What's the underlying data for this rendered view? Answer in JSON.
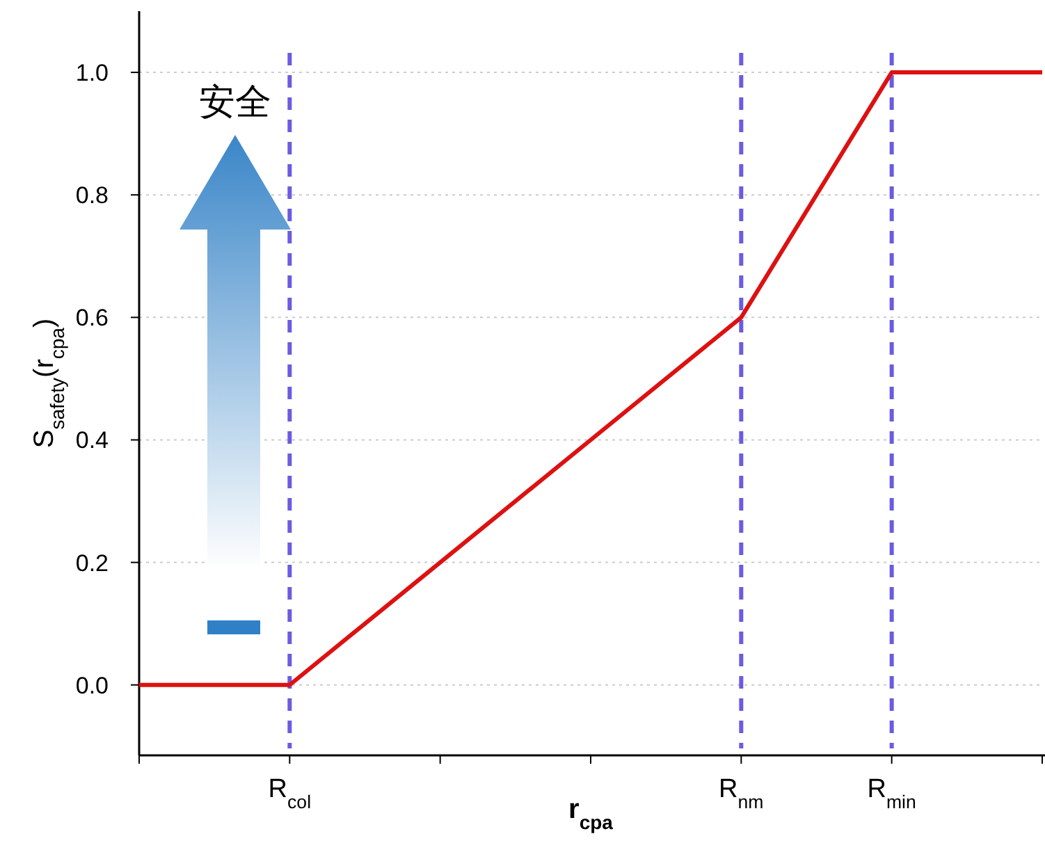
{
  "chart_data": {
    "type": "line",
    "xlabel": "r$_{cpa}$",
    "ylabel": "S$_{safety}$(r$_{cpa}$)",
    "categories": [
      null,
      "R$_{col}$",
      null,
      null,
      "R$_{nm}$",
      "R$_{min}$",
      null
    ],
    "series": [
      {
        "color": "#dd1111",
        "values": [
          0,
          0,
          0.2,
          0.4,
          0.6,
          1.0,
          1.0
        ]
      }
    ],
    "ylim": [
      -0.115,
      1.1
    ],
    "yticks": [
      {
        "value": 0,
        "label": "0.0"
      },
      {
        "value": 0.2,
        "label": "0.2"
      },
      {
        "value": 0.4,
        "label": "0.4"
      },
      {
        "value": 0.6,
        "label": "0.6"
      },
      {
        "value": 0.8,
        "label": "0.8"
      },
      {
        "value": 1,
        "label": "1.0"
      }
    ],
    "grid": "y",
    "marker": "none",
    "line_style": "solid",
    "ref_lines": [
      {
        "axis": "x",
        "value": "R$_{col}$",
        "color": "#6a5ce0",
        "line_style": "dashed"
      },
      {
        "axis": "x",
        "value": "R$_{nm}$",
        "color": "#6a5ce0",
        "line_style": "dashed"
      },
      {
        "axis": "x",
        "value": "R$_{min}$",
        "color": "#6a5ce0",
        "line_style": "dashed"
      }
    ],
    "annotations": [
      "安全"
    ]
  }
}
